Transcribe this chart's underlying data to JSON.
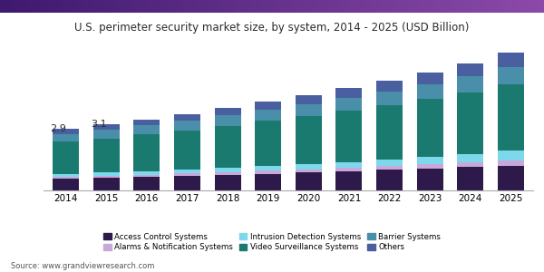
{
  "title": "U.S. perimeter security market size, by system, 2014 - 2025 (USD Billion)",
  "years": [
    2014,
    2015,
    2016,
    2017,
    2018,
    2019,
    2020,
    2021,
    2022,
    2023,
    2024,
    2025
  ],
  "annotations": [
    [
      "2014",
      "2.9"
    ],
    [
      "2015",
      "3.1"
    ]
  ],
  "series": {
    "Access Control Systems": [
      0.55,
      0.58,
      0.62,
      0.67,
      0.72,
      0.78,
      0.83,
      0.9,
      0.96,
      1.02,
      1.09,
      1.16
    ],
    "Alarms & Notification Systems": [
      0.1,
      0.11,
      0.12,
      0.13,
      0.14,
      0.15,
      0.16,
      0.18,
      0.19,
      0.21,
      0.23,
      0.25
    ],
    "Intrusion Detection Systems": [
      0.13,
      0.14,
      0.15,
      0.16,
      0.18,
      0.2,
      0.22,
      0.25,
      0.29,
      0.33,
      0.39,
      0.46
    ],
    "Video Surveillance Systems": [
      1.5,
      1.6,
      1.72,
      1.84,
      1.98,
      2.12,
      2.26,
      2.4,
      2.55,
      2.71,
      2.89,
      3.1
    ],
    "Barrier Systems": [
      0.37,
      0.4,
      0.43,
      0.46,
      0.49,
      0.53,
      0.57,
      0.61,
      0.65,
      0.7,
      0.75,
      0.81
    ],
    "Others": [
      0.25,
      0.27,
      0.29,
      0.31,
      0.34,
      0.37,
      0.4,
      0.44,
      0.48,
      0.53,
      0.59,
      0.67
    ]
  },
  "colors": {
    "Access Control Systems": "#2e1a4a",
    "Alarms & Notification Systems": "#c8a8d8",
    "Intrusion Detection Systems": "#7ed8ec",
    "Video Surveillance Systems": "#1a7a70",
    "Barrier Systems": "#4a8faa",
    "Others": "#4a5fa0"
  },
  "legend_order": [
    "Access Control Systems",
    "Alarms & Notification Systems",
    "Intrusion Detection Systems",
    "Video Surveillance Systems",
    "Barrier Systems",
    "Others"
  ],
  "source": "Source: www.grandviewresearch.com",
  "ylim": [
    0,
    7.0
  ],
  "background_color": "#ffffff",
  "title_color": "#2a2a2a",
  "header_color_left": "#3d1f6e",
  "header_color_right": "#8b4ba8"
}
